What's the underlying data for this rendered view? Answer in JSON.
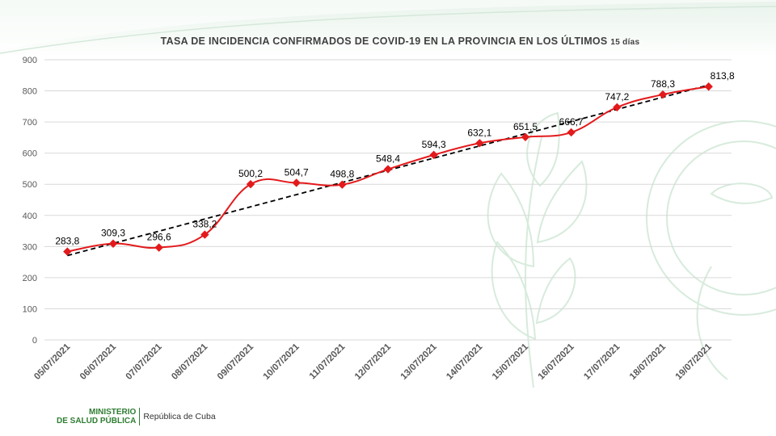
{
  "chart_data": {
    "type": "line",
    "title": "TASA DE INCIDENCIA  CONFIRMADOS  DE COVID-19  EN  LA PROVINCIA  EN LOS ÚLTIMOS",
    "title_suffix": "15 días",
    "categories": [
      "05/07/2021",
      "06/07/2021",
      "07/07/2021",
      "08/07/2021",
      "09/07/2021",
      "10/07/2021",
      "11/07/2021",
      "12/07/2021",
      "13/07/2021",
      "14/07/2021",
      "15/07/2021",
      "16/07/2021",
      "17/07/2021",
      "18/07/2021",
      "19/07/2021"
    ],
    "series": [
      {
        "name": "Tasa de incidencia",
        "values": [
          283.8,
          309.3,
          296.6,
          338.2,
          500.2,
          504.7,
          498.8,
          548.4,
          594.3,
          632.1,
          651.5,
          666.7,
          747.2,
          788.3,
          813.8
        ],
        "labels": [
          "283,8",
          "309,3",
          "296,6",
          "338,2",
          "500,2",
          "504,7",
          "498,8",
          "548,4",
          "594,3",
          "632,1",
          "651,5",
          "666,7",
          "747,2",
          "788,3",
          "813,8"
        ],
        "color": "#e31a1c"
      }
    ],
    "trendline": {
      "type": "linear",
      "color": "#000000",
      "style": "dashed"
    },
    "ylim": [
      0,
      900
    ],
    "yticks": [
      "0",
      "100",
      "200",
      "300",
      "400",
      "500",
      "600",
      "700",
      "800",
      "900"
    ],
    "xlabel": "",
    "ylabel": "",
    "grid": true
  },
  "footer": {
    "ministerio_line1": "MINISTERIO",
    "ministerio_line2": "DE SALUD PÚBLICA",
    "republica": "República de Cuba"
  },
  "colors": {
    "accent": "#2e7d32",
    "series": "#e31a1c",
    "grid": "#d9d9d9",
    "axis_text": "#595959"
  }
}
